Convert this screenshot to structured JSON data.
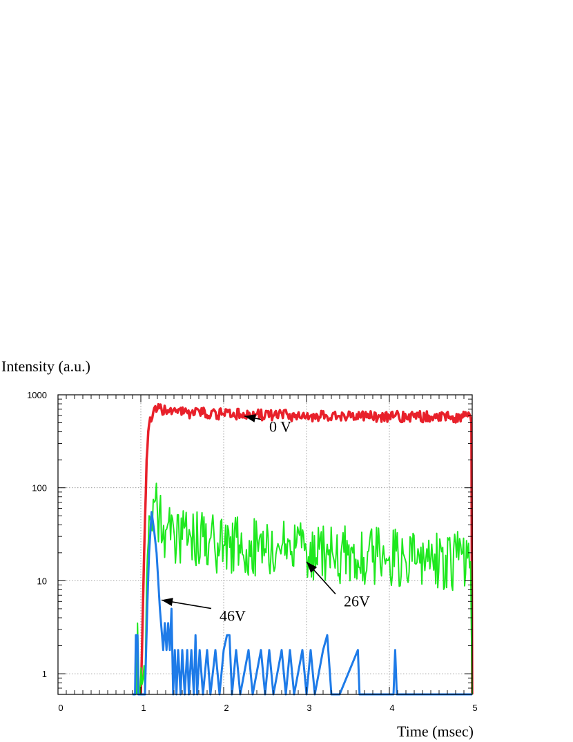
{
  "chart_data": {
    "type": "line",
    "ylabel": "Intensity (a.u.)",
    "xlabel": "Time (msec)",
    "xlim": [
      0,
      5
    ],
    "ylim": [
      0.6,
      1000
    ],
    "yscale": "log",
    "grid": true,
    "x_ticks": [
      "0",
      "1",
      "2",
      "3",
      "4",
      "5"
    ],
    "y_ticks": [
      "1",
      "10",
      "100",
      "1000"
    ],
    "annotations": [
      {
        "text": "0 V",
        "x": 2.55,
        "y": 400,
        "arrow_to": [
          2.25,
          590
        ]
      },
      {
        "text": "26V",
        "x": 3.45,
        "y": 5.3,
        "arrow_to": [
          3.0,
          16
        ]
      },
      {
        "text": "46V",
        "x": 1.95,
        "y": 3.7,
        "arrow_to": [
          1.25,
          6.2
        ]
      }
    ],
    "series": [
      {
        "name": "0 V",
        "color": "#e8202a",
        "width": 3.5,
        "noise": 0.06,
        "seed": 11,
        "points": [
          [
            1.0,
            0.6
          ],
          [
            1.04,
            20
          ],
          [
            1.07,
            200
          ],
          [
            1.1,
            480
          ],
          [
            1.15,
            650
          ],
          [
            1.2,
            700
          ],
          [
            1.3,
            680
          ],
          [
            1.6,
            640
          ],
          [
            2.0,
            620
          ],
          [
            2.5,
            605
          ],
          [
            3.0,
            595
          ],
          [
            3.5,
            590
          ],
          [
            4.0,
            585
          ],
          [
            4.5,
            580
          ],
          [
            4.98,
            575
          ],
          [
            4.99,
            500
          ],
          [
            5.0,
            0.6
          ]
        ]
      },
      {
        "name": "26V",
        "color": "#1ee81e",
        "width": 2,
        "noise": 0.32,
        "seed": 23,
        "points": [
          [
            0.95,
            0.6
          ],
          [
            0.96,
            3.5
          ],
          [
            0.98,
            0.6
          ],
          [
            1.05,
            0.6
          ],
          [
            1.07,
            10
          ],
          [
            1.1,
            50
          ],
          [
            1.15,
            75
          ],
          [
            1.2,
            55
          ],
          [
            1.3,
            35
          ],
          [
            1.5,
            28
          ],
          [
            2.0,
            24
          ],
          [
            2.5,
            22
          ],
          [
            3.0,
            20
          ],
          [
            3.5,
            19
          ],
          [
            4.0,
            18
          ],
          [
            4.5,
            17
          ],
          [
            4.98,
            16
          ],
          [
            5.0,
            0.6
          ]
        ]
      },
      {
        "name": "46V",
        "color": "#1e7be8",
        "width": 3,
        "noise": 0,
        "seed": 0,
        "points": [
          [
            0.9,
            0.6
          ],
          [
            0.93,
            0.6
          ],
          [
            0.94,
            2.6
          ],
          [
            0.96,
            2.6
          ],
          [
            0.97,
            0.6
          ],
          [
            1.05,
            0.6
          ],
          [
            1.08,
            6
          ],
          [
            1.1,
            20
          ],
          [
            1.13,
            55
          ],
          [
            1.16,
            35
          ],
          [
            1.19,
            20
          ],
          [
            1.21,
            10
          ],
          [
            1.23,
            5
          ],
          [
            1.25,
            3
          ],
          [
            1.27,
            1.8
          ],
          [
            1.29,
            3.5
          ],
          [
            1.31,
            1.8
          ],
          [
            1.33,
            3.5
          ],
          [
            1.35,
            1.8
          ],
          [
            1.37,
            5
          ],
          [
            1.39,
            0.6
          ],
          [
            1.41,
            1.8
          ],
          [
            1.43,
            0.6
          ],
          [
            1.45,
            1.8
          ],
          [
            1.48,
            0.6
          ],
          [
            1.5,
            1.8
          ],
          [
            1.53,
            0.6
          ],
          [
            1.56,
            1.8
          ],
          [
            1.58,
            0.6
          ],
          [
            1.61,
            1.8
          ],
          [
            1.64,
            0.6
          ],
          [
            1.66,
            2.6
          ],
          [
            1.68,
            0.6
          ],
          [
            1.71,
            1.8
          ],
          [
            1.75,
            0.6
          ],
          [
            1.8,
            1.8
          ],
          [
            1.84,
            0.6
          ],
          [
            1.9,
            1.8
          ],
          [
            1.95,
            0.6
          ],
          [
            2.0,
            1.8
          ],
          [
            2.04,
            2.6
          ],
          [
            2.07,
            2.6
          ],
          [
            2.1,
            0.6
          ],
          [
            2.15,
            1.8
          ],
          [
            2.2,
            0.6
          ],
          [
            2.3,
            1.8
          ],
          [
            2.35,
            0.6
          ],
          [
            2.45,
            1.8
          ],
          [
            2.5,
            0.6
          ],
          [
            2.55,
            1.8
          ],
          [
            2.6,
            0.6
          ],
          [
            2.7,
            1.8
          ],
          [
            2.75,
            0.6
          ],
          [
            2.8,
            1.8
          ],
          [
            2.85,
            0.6
          ],
          [
            2.95,
            1.8
          ],
          [
            3.0,
            0.6
          ],
          [
            3.05,
            1.8
          ],
          [
            3.1,
            0.6
          ],
          [
            3.2,
            1.8
          ],
          [
            3.25,
            2.6
          ],
          [
            3.3,
            0.6
          ],
          [
            3.4,
            0.6
          ],
          [
            3.62,
            1.8
          ],
          [
            3.64,
            0.6
          ],
          [
            4.05,
            0.6
          ],
          [
            4.07,
            1.8
          ],
          [
            4.09,
            0.6
          ],
          [
            5.0,
            0.6
          ]
        ]
      }
    ]
  }
}
